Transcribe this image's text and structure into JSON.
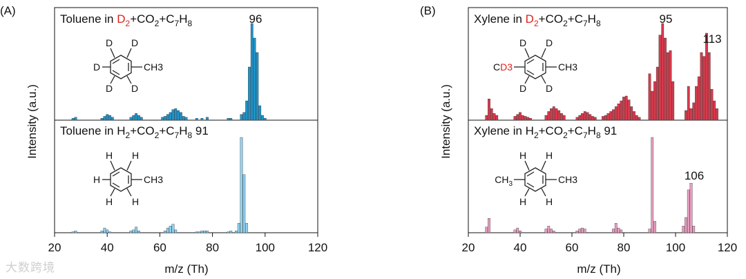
{
  "colors": {
    "toluene_d2": "#1f93c9",
    "toluene_h2": "#8fd0f0",
    "xylene_d2": "#d63a4c",
    "xylene_h2": "#e79ec0",
    "deuterium_red": "#e0211d"
  },
  "watermark": "大数跨境",
  "chart_data": [
    {
      "type": "bar",
      "panel_label": "(A)",
      "xlabel": "m/z (Th)",
      "ylabel": "Intensity (a.u.)",
      "xlim": [
        20,
        120
      ],
      "xticks": [
        20,
        40,
        60,
        80,
        100,
        120
      ],
      "subplots": [
        {
          "title_parts": [
            "Toluene in ",
            "D",
            "2",
            "+CO",
            "2",
            "+C",
            "7",
            "H",
            "8"
          ],
          "peak_labels": [
            {
              "x": 96,
              "text": "96"
            }
          ],
          "molecule": {
            "atoms": [
              "D",
              "D",
              "D",
              "D",
              "D"
            ],
            "substituent": "CH3"
          },
          "series": [
            {
              "name": "Toluene in D2+CO2+C7H8",
              "color_key": "toluene_d2",
              "x": [
                27,
                28,
                38,
                39,
                40,
                41,
                42,
                49,
                50,
                51,
                52,
                53,
                61,
                62,
                63,
                64,
                65,
                66,
                67,
                68,
                69,
                70,
                74,
                76,
                78,
                86,
                87,
                91,
                92,
                93,
                94,
                95,
                96,
                97,
                98,
                99,
                100
              ],
              "y": [
                2,
                3,
                2,
                4,
                6,
                5,
                3,
                3,
                5,
                7,
                5,
                3,
                3,
                4,
                6,
                8,
                11,
                12,
                10,
                8,
                4,
                3,
                2,
                2,
                3,
                2,
                2,
                6,
                8,
                20,
                55,
                100,
                85,
                70,
                15,
                5,
                2
              ]
            }
          ]
        },
        {
          "title_parts": [
            "Toluene in H",
            "2",
            "+CO",
            "2",
            "+C",
            "7",
            "H",
            "8",
            " 91"
          ],
          "peak_labels": [],
          "molecule": {
            "atoms": [
              "H",
              "H",
              "H",
              "H",
              "H"
            ],
            "substituent": "CH3"
          },
          "series": [
            {
              "name": "Toluene in H2+CO2+C7H8",
              "color_key": "toluene_h2",
              "x": [
                27,
                28,
                38,
                39,
                40,
                41,
                49,
                50,
                51,
                52,
                62,
                63,
                64,
                65,
                66,
                74,
                75,
                76,
                77,
                78,
                86,
                87,
                89,
                90,
                91,
                92,
                93
              ],
              "y": [
                1,
                2,
                2,
                5,
                3,
                1,
                2,
                3,
                6,
                2,
                2,
                5,
                7,
                9,
                3,
                1,
                1,
                2,
                2,
                2,
                1,
                2,
                2,
                10,
                100,
                61,
                10
              ]
            }
          ]
        }
      ]
    },
    {
      "type": "bar",
      "panel_label": "(B)",
      "xlabel": "m/z (Th)",
      "ylabel": "Intensity (a.u.)",
      "xlim": [
        20,
        120
      ],
      "xticks": [
        20,
        40,
        60,
        80,
        100,
        120
      ],
      "subplots": [
        {
          "title_parts": [
            "Xylene in ",
            "D",
            "2",
            "+CO",
            "2",
            "+C",
            "7",
            "H",
            "8"
          ],
          "peak_labels": [
            {
              "x": 95,
              "text": "95"
            },
            {
              "x": 113,
              "text": "113"
            }
          ],
          "molecule": {
            "atoms": [
              "D",
              "D",
              "D",
              "D"
            ],
            "left_prefix": "C",
            "left_sub": "D3",
            "substituent": "CH3"
          },
          "series": [
            {
              "name": "Xylene in D2+CO2+C7H8",
              "color_key": "xylene_d2",
              "x": [
                27,
                28,
                29,
                30,
                31,
                38,
                39,
                40,
                41,
                42,
                43,
                44,
                50,
                51,
                52,
                53,
                54,
                55,
                56,
                57,
                62,
                63,
                64,
                65,
                66,
                67,
                68,
                69,
                72,
                73,
                74,
                75,
                76,
                77,
                78,
                79,
                80,
                81,
                82,
                83,
                84,
                85,
                86,
                90,
                91,
                92,
                93,
                94,
                95,
                96,
                97,
                98,
                99,
                104,
                105,
                106,
                107,
                108,
                109,
                110,
                111,
                112,
                113,
                114,
                115,
                116
              ],
              "y": [
                5,
                22,
                12,
                7,
                5,
                4,
                6,
                8,
                5,
                4,
                3,
                2,
                5,
                9,
                12,
                14,
                12,
                10,
                7,
                5,
                3,
                5,
                7,
                9,
                8,
                6,
                4,
                3,
                4,
                5,
                7,
                9,
                11,
                14,
                17,
                20,
                24,
                25,
                21,
                14,
                9,
                5,
                3,
                48,
                30,
                40,
                55,
                88,
                100,
                85,
                70,
                72,
                40,
                10,
                35,
                12,
                18,
                35,
                45,
                70,
                66,
                90,
                70,
                32,
                20,
                12
              ]
            }
          ]
        },
        {
          "title_parts": [
            "Xylene in H",
            "2",
            "+CO",
            "2",
            "+C",
            "7",
            "H",
            "8",
            " 91"
          ],
          "peak_labels": [
            {
              "x": 106,
              "text": "106"
            }
          ],
          "molecule": {
            "atoms": [
              "H",
              "H",
              "H",
              "H"
            ],
            "left_prefix": "CH",
            "left_sub": "3",
            "substituent": "CH3"
          },
          "series": [
            {
              "name": "Xylene in H2+CO2+C7H8",
              "color_key": "xylene_h2",
              "x": [
                27,
                28,
                38,
                39,
                40,
                50,
                51,
                52,
                53,
                62,
                63,
                64,
                65,
                76,
                77,
                78,
                79,
                90,
                91,
                92,
                103,
                104,
                105,
                106,
                107
              ],
              "y": [
                6,
                15,
                3,
                5,
                2,
                4,
                7,
                4,
                2,
                2,
                4,
                5,
                4,
                4,
                10,
                5,
                3,
                4,
                100,
                12,
                7,
                16,
                45,
                52,
                7
              ]
            }
          ]
        }
      ]
    }
  ]
}
